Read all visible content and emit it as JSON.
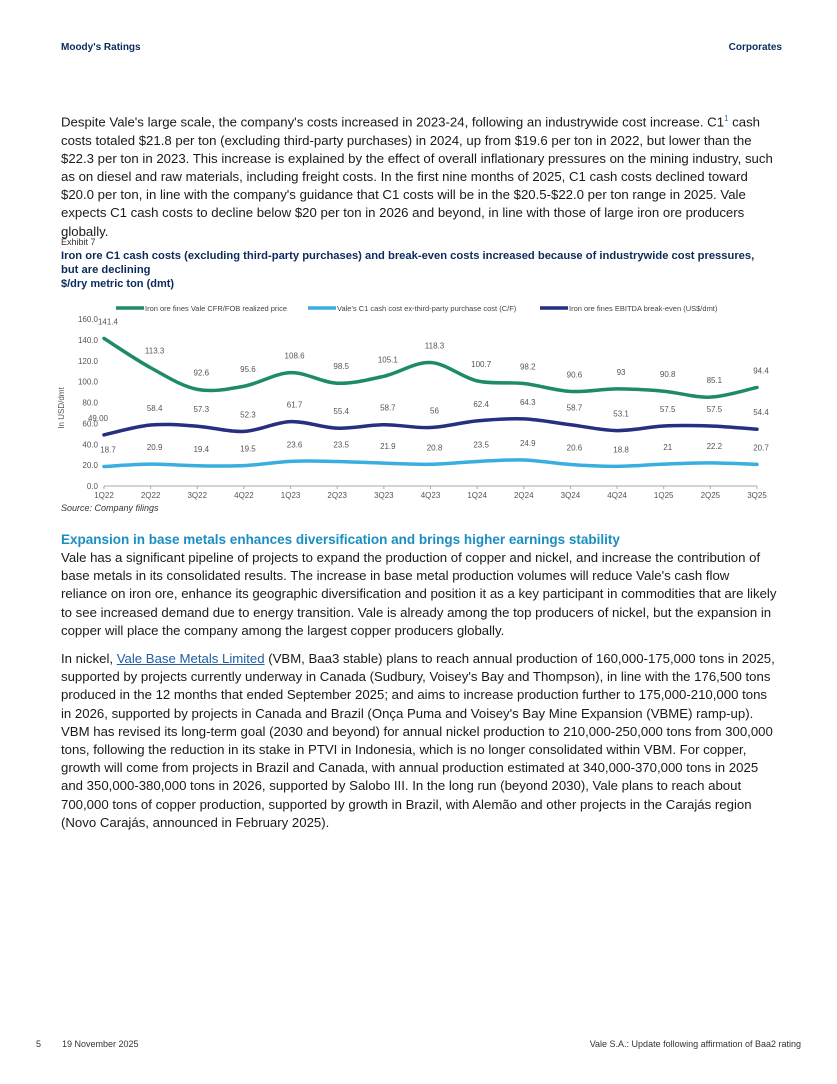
{
  "header": {
    "left": "Moody's Ratings",
    "right": "Corporates"
  },
  "intro": {
    "before_sup": "Despite Vale's large scale, the company's costs increased in 2023-24, following an industrywide cost increase. C1",
    "sup": "1",
    "after_sup": " cash costs totaled $21.8 per ton (excluding third-party purchases) in 2024, up from $19.6 per ton in 2022, but lower than the $22.3 per ton in 2023. This increase is explained by the effect of overall inflationary pressures on the mining industry, such as on diesel and raw materials, including freight costs. In the first nine months of 2025, C1 cash costs declined toward $20.0 per ton, in line with the company's guidance that C1 costs will be in the $20.5-$22.0 per ton range in 2025. Vale expects C1 cash costs to decline below $20 per ton in 2026 and beyond, in line with those of large iron ore producers globally."
  },
  "exhibit": {
    "label": "Exhibit 7",
    "title": "Iron ore C1 cash costs (excluding third-party purchases) and break-even costs increased because of industrywide cost pressures, but are declining",
    "unit": "$/dry metric ton (dmt)",
    "source": "Source: Company filings"
  },
  "chart_data": {
    "type": "line",
    "ylabel": "In USD/dmt",
    "ylim": [
      0,
      160
    ],
    "yticks": [
      "0.0",
      "20.0",
      "40.0",
      "60.0",
      "80.0",
      "100.0",
      "120.0",
      "140.0",
      "160.0"
    ],
    "categories": [
      "1Q22",
      "2Q22",
      "3Q22",
      "4Q22",
      "1Q23",
      "2Q23",
      "3Q23",
      "4Q23",
      "1Q24",
      "2Q24",
      "3Q24",
      "4Q24",
      "1Q25",
      "2Q25",
      "3Q25"
    ],
    "legend_position": "top",
    "series": [
      {
        "name": "Iron ore fines Vale CFR/FOB realized price",
        "color": "#1e8c63",
        "values": [
          141.4,
          113.3,
          92.6,
          95.6,
          108.6,
          98.5,
          105.1,
          118.3,
          100.7,
          98.2,
          90.6,
          93,
          90.8,
          85.1,
          94.4
        ],
        "labels": [
          "141.4",
          "113.3",
          "92.6",
          "95.6",
          "108.6",
          "98.5",
          "105.1",
          "118.3",
          "100.7",
          "98.2",
          "90.6",
          "93",
          "90.8",
          "85.1",
          "94.4"
        ]
      },
      {
        "name": "Vale's C1 cash cost ex-third-party purchase cost (C/F)",
        "color": "#3aaee0",
        "values": [
          18.7,
          20.9,
          19.4,
          19.5,
          23.6,
          23.5,
          21.9,
          20.8,
          23.5,
          24.9,
          20.6,
          18.8,
          21,
          22.2,
          20.7
        ],
        "labels": [
          "18.7",
          "20.9",
          "19.4",
          "19.5",
          "23.6",
          "23.5",
          "21.9",
          "20.8",
          "23.5",
          "24.9",
          "20.6",
          "18.8",
          "21",
          "22.2",
          "20.7"
        ]
      },
      {
        "name": "Iron ore fines EBITDA break-even (US$/dmt)",
        "color": "#262f80",
        "values": [
          49.0,
          58.4,
          57.3,
          52.3,
          61.7,
          55.4,
          58.7,
          56,
          62.4,
          64.3,
          58.7,
          53.1,
          57.5,
          57.5,
          54.4
        ],
        "labels": [
          "49.00",
          "58.4",
          "57.3",
          "52.3",
          "61.7",
          "55.4",
          "58.7",
          "56",
          "62.4",
          "64.3",
          "58.7",
          "53.1",
          "57.5",
          "57.5",
          "54.4"
        ]
      }
    ]
  },
  "section": {
    "heading": "Expansion in base metals enhances diversification and brings higher earnings stability",
    "p1": "Vale has a significant pipeline of projects to expand the production of copper and nickel, and increase the contribution of base metals in its consolidated results. The increase in base metal production volumes will reduce Vale's cash flow reliance on iron ore, enhance its geographic diversification and position it as a key participant in commodities that are likely to see increased demand due to energy transition. Vale is already among the top producers of nickel, but the expansion in copper will place the company among the largest copper producers globally.",
    "p2_pre": "In nickel, ",
    "p2_link": "Vale Base Metals Limited",
    "p2_post": " (VBM, Baa3 stable) plans to reach annual production of 160,000-175,000 tons in 2025, supported by projects currently underway in Canada (Sudbury, Voisey's Bay and Thompson), in line with the 176,500 tons produced in the 12 months that ended September 2025; and aims to increase production further to 175,000-210,000 tons in 2026, supported by projects in Canada and Brazil (Onça Puma and Voisey's Bay Mine Expansion (VBME) ramp-up). VBM has revised its long-term goal (2030 and beyond) for annual nickel production to 210,000-250,000 tons from 300,000 tons, following the reduction in its stake in PTVI in Indonesia, which is no longer consolidated within VBM. For copper, growth will come from projects in Brazil and Canada, with annual production estimated at 340,000-370,000 tons in 2025 and 350,000-380,000 tons in 2026, supported by Salobo III. In the long run (beyond 2030), Vale plans to reach about 700,000 tons of copper production, supported by growth in Brazil, with Alemão and other projects in the Carajás region (Novo Carajás, announced in February 2025)."
  },
  "footer": {
    "page": "5",
    "date": "19 November 2025",
    "doc": "Vale S.A.: Update following affirmation of Baa2 rating"
  }
}
